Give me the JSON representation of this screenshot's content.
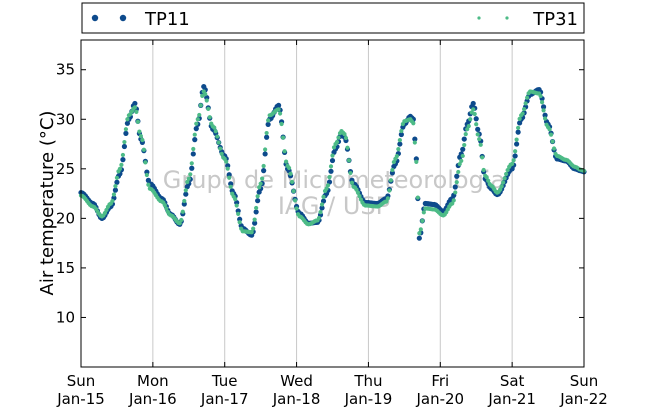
{
  "chart_data": {
    "type": "scatter",
    "title": "",
    "xlabel": "",
    "ylabel": "Air temperature (°C)",
    "xlim": [
      "Jan-15 00:00",
      "Jan-22 00:00"
    ],
    "ylim": [
      5,
      38
    ],
    "y_ticks": [
      10,
      15,
      20,
      25,
      30,
      35
    ],
    "x_ticks": [
      {
        "day": "Sun",
        "date": "Jan-15"
      },
      {
        "day": "Mon",
        "date": "Jan-16"
      },
      {
        "day": "Tue",
        "date": "Jan-17"
      },
      {
        "day": "Wed",
        "date": "Jan-18"
      },
      {
        "day": "Thu",
        "date": "Jan-19"
      },
      {
        "day": "Fri",
        "date": "Jan-20"
      },
      {
        "day": "Sat",
        "date": "Jan-21"
      },
      {
        "day": "Sun",
        "date": "Jan-22"
      }
    ],
    "vertical_grid": true,
    "legend_position": "top (above plot)",
    "watermark": [
      "Grupo de Micrometeorologia",
      "IAG / USP"
    ],
    "series": [
      {
        "name": "TP11",
        "color": "#0d4a8c",
        "x": [
          "Jan-15 00:00",
          "Jan-15 04:00",
          "Jan-15 07:00",
          "Jan-15 10:00",
          "Jan-15 13:00",
          "Jan-15 16:00",
          "Jan-15 18:00",
          "Jan-15 20:00",
          "Jan-15 23:00",
          "Jan-16 03:00",
          "Jan-16 06:00",
          "Jan-16 09:00",
          "Jan-16 12:00",
          "Jan-16 15:00",
          "Jan-16 17:00",
          "Jan-16 20:00",
          "Jan-17 00:00",
          "Jan-17 03:00",
          "Jan-17 06:00",
          "Jan-17 09:00",
          "Jan-17 12:00",
          "Jan-17 15:00",
          "Jan-17 18:00",
          "Jan-17 21:00",
          "Jan-18 01:00",
          "Jan-18 04:00",
          "Jan-18 07:00",
          "Jan-18 10:00",
          "Jan-18 13:00",
          "Jan-18 15:00",
          "Jan-18 16:00",
          "Jan-18 19:00",
          "Jan-18 23:00",
          "Jan-19 03:00",
          "Jan-19 06:00",
          "Jan-19 09:00",
          "Jan-19 12:00",
          "Jan-19 14:00",
          "Jan-19 15:00",
          "Jan-19 16:00",
          "Jan-19 17:00",
          "Jan-19 19:00",
          "Jan-19 22:00",
          "Jan-20 01:00",
          "Jan-20 04:00",
          "Jan-20 07:00",
          "Jan-20 09:00",
          "Jan-20 11:00",
          "Jan-20 13:00",
          "Jan-20 15:00",
          "Jan-20 17:00",
          "Jan-20 19:00",
          "Jan-21 00:00",
          "Jan-21 03:00",
          "Jan-21 06:00",
          "Jan-21 09:00",
          "Jan-21 12:00",
          "Jan-21 15:00",
          "Jan-21 18:00",
          "Jan-21 21:00",
          "Jan-21 23:00",
          "Jan-22 00:00"
        ],
        "y": [
          22.6,
          21.5,
          20.0,
          21.2,
          24.5,
          30.0,
          31.6,
          28.0,
          23.5,
          22.0,
          20.4,
          19.4,
          23.5,
          29.5,
          33.3,
          29.0,
          26.3,
          22.5,
          19.0,
          18.3,
          23.0,
          30.0,
          31.4,
          25.0,
          20.5,
          19.5,
          19.6,
          22.5,
          27.0,
          28.5,
          28.2,
          23.5,
          21.6,
          21.5,
          22.0,
          25.5,
          29.5,
          30.3,
          30.0,
          26.0,
          18.0,
          21.5,
          21.4,
          20.7,
          22.0,
          26.5,
          29.5,
          31.6,
          28.5,
          24.0,
          23.0,
          22.4,
          25.0,
          30.0,
          32.5,
          33.0,
          29.5,
          26.0,
          25.8,
          25.0,
          24.8,
          24.7
        ]
      },
      {
        "name": "TP31",
        "color": "#4dbb87",
        "x": [
          "Jan-15 00:00",
          "Jan-15 04:00",
          "Jan-15 07:00",
          "Jan-15 10:00",
          "Jan-15 13:00",
          "Jan-15 16:00",
          "Jan-15 18:00",
          "Jan-15 20:00",
          "Jan-15 23:00",
          "Jan-16 03:00",
          "Jan-16 06:00",
          "Jan-16 09:00",
          "Jan-16 12:00",
          "Jan-16 15:00",
          "Jan-16 17:00",
          "Jan-16 20:00",
          "Jan-17 00:00",
          "Jan-17 03:00",
          "Jan-17 06:00",
          "Jan-17 09:00",
          "Jan-17 12:00",
          "Jan-17 15:00",
          "Jan-17 18:00",
          "Jan-17 21:00",
          "Jan-18 01:00",
          "Jan-18 04:00",
          "Jan-18 07:00",
          "Jan-18 10:00",
          "Jan-18 13:00",
          "Jan-18 15:00",
          "Jan-18 16:00",
          "Jan-18 19:00",
          "Jan-18 23:00",
          "Jan-19 03:00",
          "Jan-19 06:00",
          "Jan-19 09:00",
          "Jan-19 12:00",
          "Jan-19 14:00",
          "Jan-19 15:00",
          "Jan-19 16:00",
          "Jan-19 17:00",
          "Jan-19 19:00",
          "Jan-19 22:00",
          "Jan-20 01:00",
          "Jan-20 04:00",
          "Jan-20 07:00",
          "Jan-20 09:00",
          "Jan-20 11:00",
          "Jan-20 13:00",
          "Jan-20 15:00",
          "Jan-20 17:00",
          "Jan-20 19:00",
          "Jan-21 00:00",
          "Jan-21 03:00",
          "Jan-21 06:00",
          "Jan-21 09:00",
          "Jan-21 12:00",
          "Jan-21 15:00",
          "Jan-21 18:00",
          "Jan-21 21:00",
          "Jan-21 23:00",
          "Jan-22 00:00"
        ],
        "y": [
          22.3,
          21.2,
          20.2,
          21.5,
          25.0,
          30.4,
          31.2,
          28.3,
          23.0,
          21.7,
          20.3,
          19.5,
          24.0,
          30.0,
          32.8,
          29.3,
          26.0,
          22.2,
          18.7,
          18.6,
          23.5,
          30.4,
          31.0,
          25.3,
          20.2,
          19.4,
          19.8,
          23.0,
          27.5,
          28.8,
          28.5,
          23.2,
          21.3,
          21.2,
          21.7,
          26.0,
          29.8,
          30.0,
          29.6,
          25.7,
          18.5,
          21.0,
          20.9,
          20.3,
          21.5,
          25.8,
          29.0,
          31.0,
          28.0,
          24.3,
          23.3,
          22.6,
          25.5,
          30.4,
          32.8,
          32.6,
          29.2,
          26.3,
          25.9,
          25.2,
          24.9,
          24.8
        ]
      }
    ]
  }
}
